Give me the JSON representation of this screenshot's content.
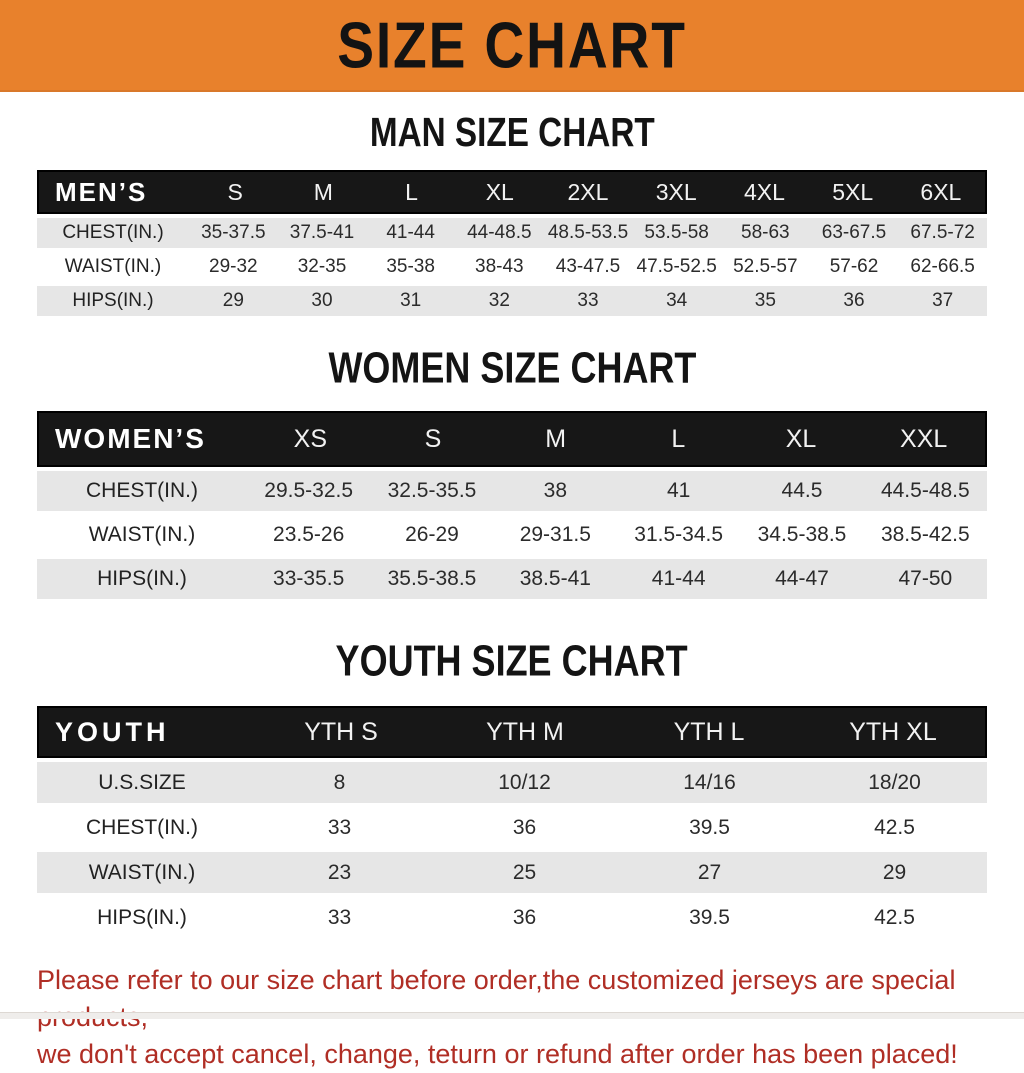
{
  "page": {
    "main_title": "SIZE CHART",
    "banner_color": "#e8812c",
    "table_header_color": "#171717",
    "alt_row_color": "#e6e6e6",
    "note_color": "#b02e25",
    "footer_note": {
      "line1": "Please refer to our size chart before order,the customized jerseys are special products,",
      "line2": "we don't accept cancel, change, teturn or refund after order has been placed!"
    }
  },
  "sections": [
    {
      "title": "MAN SIZE CHART",
      "label": "MEN’S",
      "columns": [
        "S",
        "M",
        "L",
        "XL",
        "2XL",
        "3XL",
        "4XL",
        "5XL",
        "6XL"
      ],
      "rows": [
        {
          "label": "CHEST(IN.)",
          "values": [
            "35-37.5",
            "37.5-41",
            "41-44",
            "44-48.5",
            "48.5-53.5",
            "53.5-58",
            "58-63",
            "63-67.5",
            "67.5-72"
          ]
        },
        {
          "label": "WAIST(IN.)",
          "values": [
            "29-32",
            "32-35",
            "35-38",
            "38-43",
            "43-47.5",
            "47.5-52.5",
            "52.5-57",
            "57-62",
            "62-66.5"
          ]
        },
        {
          "label": "HIPS(IN.)",
          "values": [
            "29",
            "30",
            "31",
            "32",
            "33",
            "34",
            "35",
            "36",
            "37"
          ]
        }
      ]
    },
    {
      "title": "WOMEN SIZE CHART",
      "label": "WOMEN’S",
      "columns": [
        "XS",
        "S",
        "M",
        "L",
        "XL",
        "XXL"
      ],
      "rows": [
        {
          "label": "CHEST(IN.)",
          "values": [
            "29.5-32.5",
            "32.5-35.5",
            "38",
            "41",
            "44.5",
            "44.5-48.5"
          ]
        },
        {
          "label": "WAIST(IN.)",
          "values": [
            "23.5-26",
            "26-29",
            "29-31.5",
            "31.5-34.5",
            "34.5-38.5",
            "38.5-42.5"
          ]
        },
        {
          "label": "HIPS(IN.)",
          "values": [
            "33-35.5",
            "35.5-38.5",
            "38.5-41",
            "41-44",
            "44-47",
            "47-50"
          ]
        }
      ]
    },
    {
      "title": "YOUTH SIZE CHART",
      "label": "YOUTH",
      "columns": [
        "YTH S",
        "YTH M",
        "YTH L",
        "YTH XL"
      ],
      "rows": [
        {
          "label": "U.S.SIZE",
          "values": [
            "8",
            "10/12",
            "14/16",
            "18/20"
          ]
        },
        {
          "label": "CHEST(IN.)",
          "values": [
            "33",
            "36",
            "39.5",
            "42.5"
          ]
        },
        {
          "label": "WAIST(IN.)",
          "values": [
            "23",
            "25",
            "27",
            "29"
          ]
        },
        {
          "label": "HIPS(IN.)",
          "values": [
            "33",
            "36",
            "39.5",
            "42.5"
          ]
        }
      ]
    }
  ]
}
